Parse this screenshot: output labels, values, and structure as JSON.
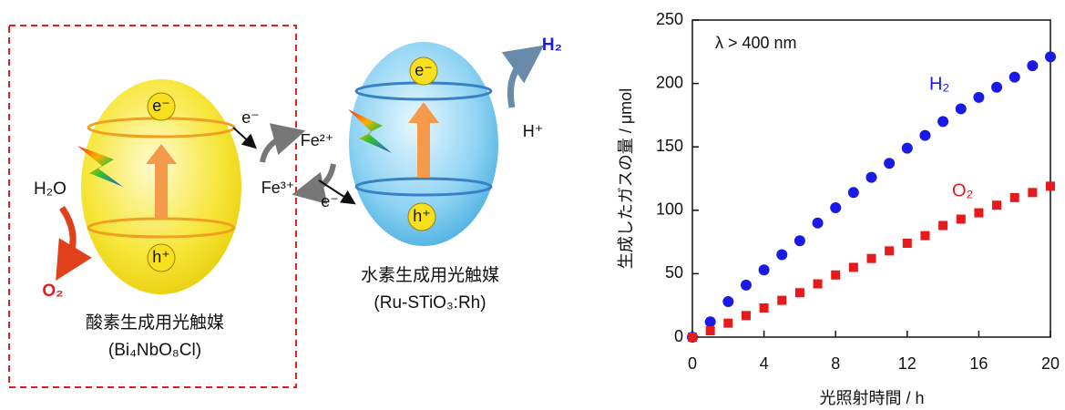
{
  "diagram": {
    "left_electron": "e⁻",
    "left_hole": "h⁺",
    "water": "H₂O",
    "oxygen": "O₂",
    "left_name": "酸素生成用光触媒",
    "left_formula": "(Bi₄NbO₈Cl)",
    "electron_labels": [
      "e⁻",
      "e⁻"
    ],
    "fe2": "Fe²⁺",
    "fe3": "Fe³⁺",
    "right_electron": "e⁻",
    "right_hole": "h⁺",
    "proton": "H⁺",
    "hydrogen": "H₂",
    "right_name": "水素生成用光触媒",
    "right_formula": "(Ru-STiO₃:Rh)"
  },
  "chart_data": {
    "type": "scatter",
    "annotation": "λ > 400 nm",
    "x_label": "光照射時間 / h",
    "y_label": "生成したガスの量 / μmol",
    "x": [
      0,
      1,
      2,
      3,
      4,
      5,
      6,
      7,
      8,
      9,
      10,
      11,
      12,
      13,
      14,
      15,
      16,
      17,
      18,
      19,
      20
    ],
    "series": [
      {
        "name": "H₂",
        "color": "#1a1ae6",
        "marker": "circle",
        "values": [
          0,
          12,
          28,
          41,
          53,
          65,
          76,
          90,
          102,
          114,
          126,
          137,
          149,
          159,
          170,
          180,
          189,
          197,
          205,
          214,
          221
        ]
      },
      {
        "name": "O₂",
        "color": "#e61a1a",
        "marker": "square",
        "values": [
          0,
          5,
          11,
          17,
          23,
          29,
          35,
          42,
          49,
          55,
          62,
          68,
          74,
          80,
          88,
          93,
          98,
          104,
          110,
          114,
          119
        ]
      }
    ],
    "xlim": [
      0,
      20
    ],
    "xticks": [
      0,
      4,
      8,
      12,
      16,
      20
    ],
    "ylim": [
      0,
      250
    ],
    "yticks": [
      0,
      50,
      100,
      150,
      200,
      250
    ]
  }
}
